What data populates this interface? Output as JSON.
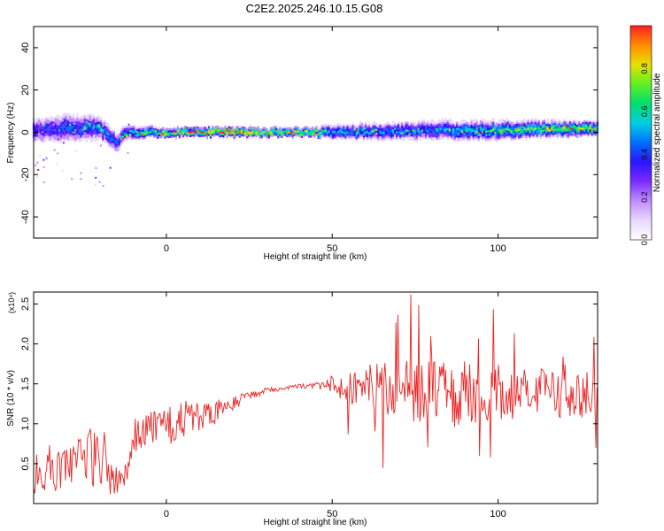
{
  "title": "C2E2.2025.246.10.15.G08",
  "colors": {
    "snr_line": "#ee2222",
    "colormap": [
      "#ffffff",
      "#e8d8ff",
      "#c08cff",
      "#7a2cff",
      "#2a14ff",
      "#0070ff",
      "#00d0e0",
      "#00e070",
      "#60f020",
      "#e8e000",
      "#ff8c00",
      "#ff2020"
    ]
  },
  "chart_data": [
    {
      "id": "spectrogram",
      "type": "heatmap",
      "xlabel": "Height of straight line (km)",
      "ylabel": "Frequency (Hz)",
      "xlim": [
        -40,
        130
      ],
      "ylim": [
        -50,
        50
      ],
      "xticks": [
        0,
        50,
        100
      ],
      "yticks": [
        -40,
        -20,
        0,
        20,
        40
      ],
      "colorbar": {
        "label": "Normalized spectral amplitude",
        "range": [
          0.0,
          1.0
        ],
        "ticks": [
          "0.0",
          "0.2",
          "0.4",
          "0.6",
          "0.8"
        ]
      },
      "band": [
        {
          "x": -40,
          "center_hz": 1,
          "halfwidth_hz": 5,
          "amp": 0.35
        },
        {
          "x": -30,
          "center_hz": 2,
          "halfwidth_hz": 6,
          "amp": 0.4
        },
        {
          "x": -20,
          "center_hz": 2,
          "halfwidth_hz": 5,
          "amp": 0.45
        },
        {
          "x": -15,
          "center_hz": -5,
          "halfwidth_hz": 4,
          "amp": 0.4
        },
        {
          "x": -12,
          "center_hz": 0,
          "halfwidth_hz": 3,
          "amp": 0.5
        },
        {
          "x": 0,
          "center_hz": 0,
          "halfwidth_hz": 2,
          "amp": 0.75
        },
        {
          "x": 20,
          "center_hz": 0,
          "halfwidth_hz": 2,
          "amp": 0.9
        },
        {
          "x": 30,
          "center_hz": 0,
          "halfwidth_hz": 2,
          "amp": 0.7
        },
        {
          "x": 45,
          "center_hz": 0,
          "halfwidth_hz": 2,
          "amp": 0.75
        },
        {
          "x": 50,
          "center_hz": 0,
          "halfwidth_hz": 3,
          "amp": 0.5
        },
        {
          "x": 80,
          "center_hz": 1,
          "halfwidth_hz": 4,
          "amp": 0.45
        },
        {
          "x": 100,
          "center_hz": 1,
          "halfwidth_hz": 4,
          "amp": 0.6
        },
        {
          "x": 130,
          "center_hz": 2,
          "halfwidth_hz": 3,
          "amp": 0.7
        }
      ]
    },
    {
      "id": "snr",
      "type": "line",
      "xlabel": "Height of straight line (km)",
      "ylabel": "SNR (10 * v/v)",
      "y_multiplier": "(x10⁴)",
      "xlim": [
        -40,
        130
      ],
      "ylim": [
        0,
        2.65
      ],
      "xticks": [
        0,
        50,
        100
      ],
      "yticks": [
        0.5,
        1.0,
        1.5,
        2.0,
        2.5
      ],
      "series": [
        {
          "x": [
            -40,
            -35,
            -30,
            -25,
            -20,
            -17,
            -15,
            -12,
            -10,
            -5,
            0,
            5,
            10,
            15,
            20,
            25,
            30,
            35,
            40,
            45,
            50,
            55,
            60,
            65,
            70,
            75,
            80,
            85,
            90,
            95,
            100,
            105,
            110,
            115,
            120,
            125,
            130
          ],
          "y": [
            0.35,
            0.45,
            0.4,
            0.55,
            0.6,
            0.4,
            0.3,
            0.3,
            0.85,
            0.95,
            0.95,
            1.05,
            1.05,
            1.15,
            1.25,
            1.35,
            1.42,
            1.45,
            1.47,
            1.48,
            1.5,
            1.45,
            1.45,
            1.5,
            1.4,
            1.38,
            1.45,
            1.35,
            1.4,
            1.3,
            1.4,
            1.35,
            1.4,
            1.4,
            1.35,
            1.35,
            1.4
          ],
          "spread": [
            0.25,
            0.3,
            0.3,
            0.35,
            0.5,
            0.3,
            0.2,
            0.2,
            0.25,
            0.2,
            0.25,
            0.25,
            0.2,
            0.15,
            0.1,
            0.05,
            0.04,
            0.03,
            0.03,
            0.04,
            0.12,
            0.2,
            0.25,
            0.35,
            0.45,
            0.4,
            0.45,
            0.4,
            0.4,
            0.35,
            0.35,
            0.3,
            0.3,
            0.3,
            0.28,
            0.28,
            0.28
          ]
        }
      ]
    }
  ]
}
